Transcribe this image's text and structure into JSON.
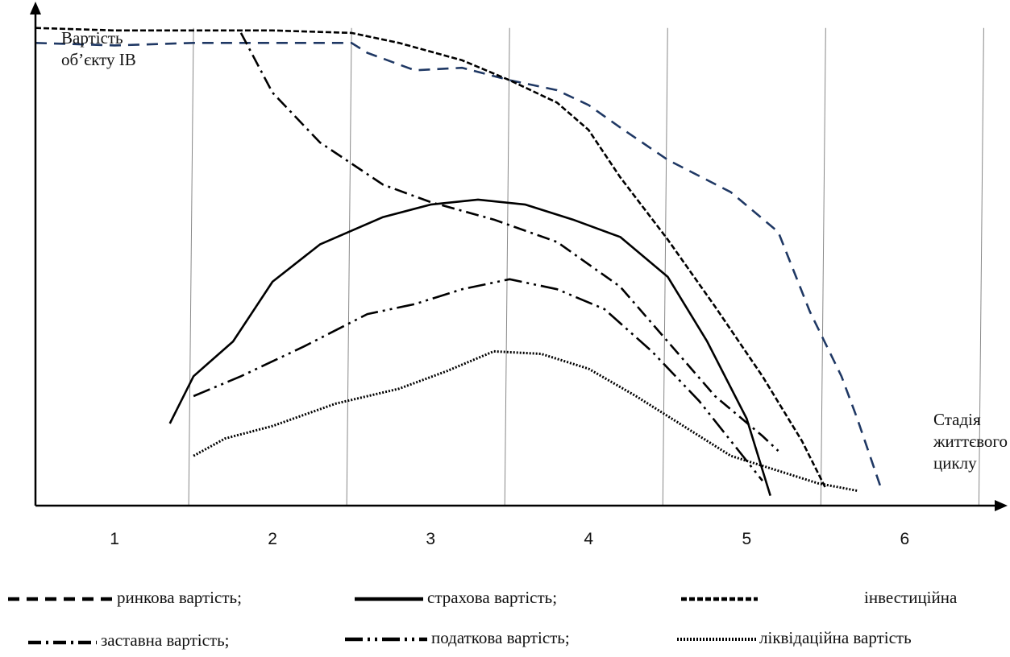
{
  "chart_data": {
    "type": "line",
    "ylabel": [
      "Вартість",
      "об’єкту ІВ"
    ],
    "xlabel": [
      "Стадія",
      "життєвого",
      "циклу"
    ],
    "categories": [
      "1",
      "2",
      "3",
      "4",
      "5",
      "6"
    ],
    "xlim": [
      0.5,
      6.6
    ],
    "ylim": [
      0,
      10
    ],
    "grid": "vertical",
    "series": [
      {
        "name": "ринкова вартість;",
        "style": "long-dash",
        "color": "#1f3864",
        "points": [
          [
            0.5,
            9.3
          ],
          [
            1.0,
            9.25
          ],
          [
            1.5,
            9.3
          ],
          [
            2.0,
            9.3
          ],
          [
            2.5,
            9.3
          ],
          [
            2.6,
            9.1
          ],
          [
            2.9,
            8.75
          ],
          [
            3.2,
            8.8
          ],
          [
            3.5,
            8.55
          ],
          [
            3.8,
            8.35
          ],
          [
            4.0,
            8.05
          ],
          [
            4.2,
            7.6
          ],
          [
            4.5,
            6.95
          ],
          [
            4.9,
            6.3
          ],
          [
            5.2,
            5.5
          ],
          [
            5.4,
            3.9
          ],
          [
            5.6,
            2.6
          ],
          [
            5.7,
            1.75
          ],
          [
            5.85,
            0.35
          ]
        ]
      },
      {
        "name": "страхова вартість;",
        "style": "solid",
        "color": "#000000",
        "points": [
          [
            1.35,
            1.65
          ],
          [
            1.5,
            2.6
          ],
          [
            1.75,
            3.3
          ],
          [
            2.0,
            4.5
          ],
          [
            2.3,
            5.25
          ],
          [
            2.7,
            5.8
          ],
          [
            3.0,
            6.05
          ],
          [
            3.3,
            6.15
          ],
          [
            3.6,
            6.05
          ],
          [
            3.9,
            5.75
          ],
          [
            4.2,
            5.4
          ],
          [
            4.5,
            4.6
          ],
          [
            4.75,
            3.3
          ],
          [
            5.0,
            1.75
          ],
          [
            5.15,
            0.2
          ]
        ]
      },
      {
        "name": "інвестиційна",
        "style": "dash",
        "color": "#000000",
        "points": [
          [
            0.5,
            9.6
          ],
          [
            1.0,
            9.55
          ],
          [
            1.5,
            9.55
          ],
          [
            2.0,
            9.55
          ],
          [
            2.5,
            9.5
          ],
          [
            2.8,
            9.3
          ],
          [
            3.2,
            8.95
          ],
          [
            3.5,
            8.55
          ],
          [
            3.8,
            8.1
          ],
          [
            4.0,
            7.55
          ],
          [
            4.2,
            6.6
          ],
          [
            4.5,
            5.35
          ],
          [
            4.8,
            4.0
          ],
          [
            5.1,
            2.6
          ],
          [
            5.35,
            1.3
          ],
          [
            5.5,
            0.35
          ]
        ]
      },
      {
        "name": "заставна вартість;",
        "style": "dash-dot",
        "color": "#000000",
        "points": [
          [
            1.8,
            9.5
          ],
          [
            2.0,
            8.3
          ],
          [
            2.3,
            7.3
          ],
          [
            2.7,
            6.45
          ],
          [
            3.0,
            6.1
          ],
          [
            3.4,
            5.75
          ],
          [
            3.8,
            5.3
          ],
          [
            4.2,
            4.4
          ],
          [
            4.5,
            3.3
          ],
          [
            4.8,
            2.2
          ],
          [
            5.1,
            1.4
          ],
          [
            5.2,
            1.1
          ]
        ]
      },
      {
        "name": "податкова вартість;",
        "style": "long-dash-dot",
        "color": "#000000",
        "points": [
          [
            1.5,
            2.2
          ],
          [
            1.8,
            2.6
          ],
          [
            2.2,
            3.2
          ],
          [
            2.6,
            3.85
          ],
          [
            2.9,
            4.05
          ],
          [
            3.2,
            4.35
          ],
          [
            3.5,
            4.55
          ],
          [
            3.8,
            4.35
          ],
          [
            4.1,
            3.95
          ],
          [
            4.4,
            3.1
          ],
          [
            4.7,
            2.1
          ],
          [
            4.95,
            1.1
          ],
          [
            5.1,
            0.5
          ]
        ]
      },
      {
        "name": "ліквідаційна вартість",
        "style": "dotted",
        "color": "#000000",
        "points": [
          [
            1.5,
            1.0
          ],
          [
            1.7,
            1.35
          ],
          [
            2.0,
            1.6
          ],
          [
            2.4,
            2.05
          ],
          [
            2.8,
            2.35
          ],
          [
            3.1,
            2.7
          ],
          [
            3.4,
            3.1
          ],
          [
            3.7,
            3.05
          ],
          [
            4.0,
            2.75
          ],
          [
            4.3,
            2.2
          ],
          [
            4.6,
            1.6
          ],
          [
            4.9,
            1.0
          ],
          [
            5.2,
            0.7
          ],
          [
            5.45,
            0.45
          ],
          [
            5.7,
            0.3
          ]
        ]
      }
    ]
  }
}
